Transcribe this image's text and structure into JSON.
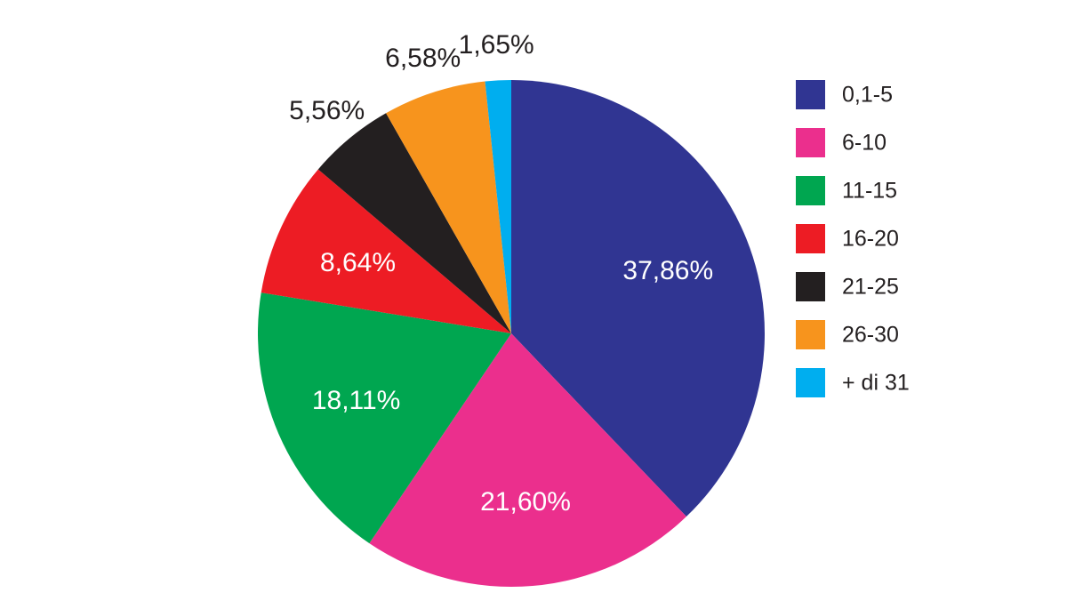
{
  "chart_data": {
    "type": "pie",
    "title": "",
    "legend_position": "right",
    "start": "top",
    "direction": "clockwise",
    "slices": [
      {
        "category": "0,1-5",
        "value": 37.86,
        "label": "37,86%",
        "color": "#303592",
        "label_color": "#ffffff",
        "label_position": "inside"
      },
      {
        "category": "6-10",
        "value": 21.6,
        "label": "21,60%",
        "color": "#eb2f8d",
        "label_color": "#ffffff",
        "label_position": "inside"
      },
      {
        "category": "11-15",
        "value": 18.11,
        "label": "18,11%",
        "color": "#00a650",
        "label_color": "#ffffff",
        "label_position": "inside"
      },
      {
        "category": "16-20",
        "value": 8.64,
        "label": "8,64%",
        "color": "#ed1c24",
        "label_color": "#ffffff",
        "label_position": "inside"
      },
      {
        "category": "21-25",
        "value": 5.56,
        "label": "5,56%",
        "color": "#231f20",
        "label_color": "#231f20",
        "label_position": "outside"
      },
      {
        "category": "26-30",
        "value": 6.58,
        "label": "6,58%",
        "color": "#f7941d",
        "label_color": "#231f20",
        "label_position": "outside"
      },
      {
        "category": "+ di 31",
        "value": 1.65,
        "label": "1,65%",
        "color": "#00aeef",
        "label_color": "#231f20",
        "label_position": "outside"
      }
    ]
  }
}
